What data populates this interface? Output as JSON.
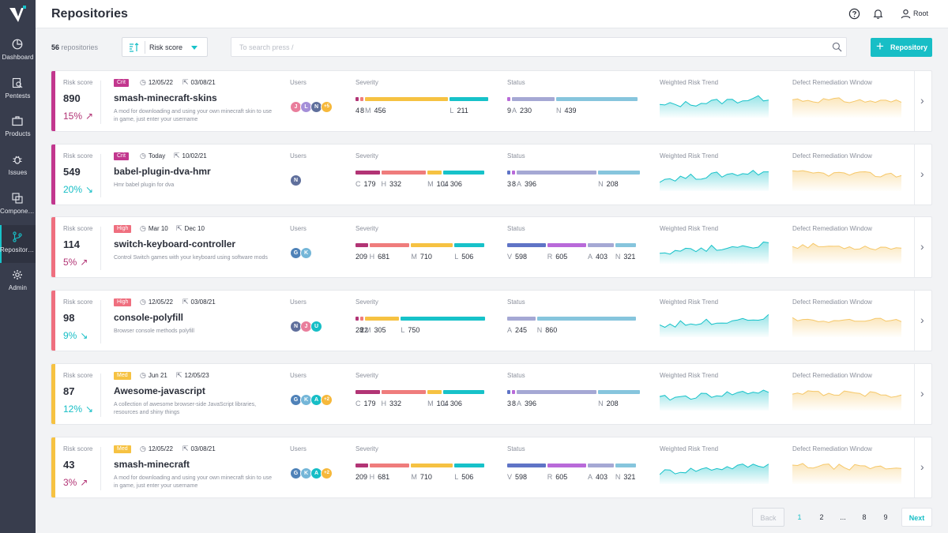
{
  "colors": {
    "accent": "#17bec6",
    "crit": "#c2378e",
    "high": "#ef6f7f",
    "med": "#f6c242",
    "trend_up": "#b23475",
    "trend_down": "#17bec6",
    "sev_c": "#b23475",
    "sev_h": "#ef7c7c",
    "sev_m": "#f6c242",
    "sev_l": "#17c2c9",
    "st_v": "#5f74c6",
    "st_r": "#b96ad9",
    "st_a": "#a5a8d4",
    "st_n": "#86c5dd",
    "risk_trend": "#17c2c9",
    "remediation": "#f6c86a"
  },
  "sidebar": {
    "items": [
      {
        "label": "Dashboard",
        "icon": "dashboard-icon"
      },
      {
        "label": "Pentests",
        "icon": "pentest-icon"
      },
      {
        "label": "Products",
        "icon": "briefcase-icon"
      },
      {
        "label": "Issues",
        "icon": "bug-icon"
      },
      {
        "label": "Components",
        "icon": "components-icon"
      },
      {
        "label": "Repositories",
        "icon": "branch-icon"
      },
      {
        "label": "Admin",
        "icon": "gear-icon"
      }
    ]
  },
  "header": {
    "title": "Repositories",
    "user": "Root"
  },
  "toolbar": {
    "count": "56",
    "count_label": "repositories",
    "sort_value": "Risk score",
    "search_placeholder": "To search press /",
    "add_label": "Repository"
  },
  "labels": {
    "risk_score": "Risk score",
    "users": "Users",
    "severity": "Severity",
    "status": "Status",
    "risk_trend": "Weighted Risk Trend",
    "remediation": "Defect Remediation Window"
  },
  "repos": [
    {
      "score": "890",
      "trend": "15%",
      "trend_dir": "up",
      "severity_level": "Crit",
      "created": "12/05/22",
      "updated": "03/08/21",
      "name": "smash-minecraft-skins",
      "desc": "A mod for downloading and using your own minecraft skin to use in game, just enter your username",
      "users": [
        "J",
        "L",
        "N"
      ],
      "users_more": "+5",
      "severity": [
        {
          "k": "",
          "v": "4",
          "type": "c"
        },
        {
          "k": "",
          "v": "8",
          "type": "h"
        },
        {
          "k": "M",
          "v": "456",
          "type": "m"
        },
        {
          "k": "L",
          "v": "211",
          "type": "l"
        }
      ],
      "status": [
        {
          "k": "",
          "v": "9",
          "type": "r"
        },
        {
          "k": "A",
          "v": "230",
          "type": "a"
        },
        {
          "k": "N",
          "v": "439",
          "type": "n"
        }
      ]
    },
    {
      "score": "549",
      "trend": "20%",
      "trend_dir": "down",
      "severity_level": "Crit",
      "created": "Today",
      "updated": "10/02/21",
      "name": "babel-plugin-dva-hmr",
      "desc": "Hmr babel plugin for dva",
      "users": [
        "N"
      ],
      "users_more": "",
      "severity": [
        {
          "k": "C",
          "v": "179",
          "type": "c"
        },
        {
          "k": "H",
          "v": "332",
          "type": "h"
        },
        {
          "k": "M",
          "v": "104",
          "type": "m"
        },
        {
          "k": "L",
          "v": "306",
          "type": "l"
        }
      ],
      "status": [
        {
          "k": "",
          "v": "3",
          "type": "v"
        },
        {
          "k": "",
          "v": "8",
          "type": "r"
        },
        {
          "k": "A",
          "v": "396",
          "type": "a"
        },
        {
          "k": "N",
          "v": "208",
          "type": "n"
        }
      ]
    },
    {
      "score": "114",
      "trend": "5%",
      "trend_dir": "up",
      "severity_level": "High",
      "created": "Mar 10",
      "updated": "Dec 10",
      "name": "switch-keyboard-controller",
      "desc": "Control Switch games with your keyboard using software mods",
      "users": [
        "G",
        "K"
      ],
      "users_more": "",
      "severity": [
        {
          "k": "",
          "v": "209",
          "type": "c"
        },
        {
          "k": "H",
          "v": "681",
          "type": "h"
        },
        {
          "k": "M",
          "v": "710",
          "type": "m"
        },
        {
          "k": "L",
          "v": "506",
          "type": "l"
        }
      ],
      "status": [
        {
          "k": "V",
          "v": "598",
          "type": "v"
        },
        {
          "k": "R",
          "v": "605",
          "type": "r"
        },
        {
          "k": "A",
          "v": "403",
          "type": "a"
        },
        {
          "k": "N",
          "v": "321",
          "type": "n"
        }
      ]
    },
    {
      "score": "98",
      "trend": "9%",
      "trend_dir": "down",
      "severity_level": "High",
      "created": "12/05/22",
      "updated": "03/08/21",
      "name": "console-polyfill",
      "desc": "Browser console methods polyfill",
      "users": [
        "N",
        "J",
        "U"
      ],
      "users_more": "",
      "severity": [
        {
          "k": "",
          "v": "28",
          "type": "c"
        },
        {
          "k": "",
          "v": "22",
          "type": "h"
        },
        {
          "k": "M",
          "v": "305",
          "type": "m"
        },
        {
          "k": "L",
          "v": "750",
          "type": "l"
        }
      ],
      "status": [
        {
          "k": "A",
          "v": "245",
          "type": "a"
        },
        {
          "k": "N",
          "v": "860",
          "type": "n"
        }
      ]
    },
    {
      "score": "87",
      "trend": "12%",
      "trend_dir": "down",
      "severity_level": "Med",
      "created": "Jun 21",
      "updated": "12/05/23",
      "name": "Awesome-javascript",
      "desc": "A collection of awesome browser-side JavaScript libraries, resources and shiny things",
      "users": [
        "G",
        "K",
        "A"
      ],
      "users_more": "+2",
      "severity": [
        {
          "k": "C",
          "v": "179",
          "type": "c"
        },
        {
          "k": "H",
          "v": "332",
          "type": "h"
        },
        {
          "k": "M",
          "v": "104",
          "type": "m"
        },
        {
          "k": "L",
          "v": "306",
          "type": "l"
        }
      ],
      "status": [
        {
          "k": "",
          "v": "3",
          "type": "v"
        },
        {
          "k": "",
          "v": "8",
          "type": "r"
        },
        {
          "k": "A",
          "v": "396",
          "type": "a"
        },
        {
          "k": "N",
          "v": "208",
          "type": "n"
        }
      ]
    },
    {
      "score": "43",
      "trend": "3%",
      "trend_dir": "up",
      "severity_level": "Med",
      "created": "12/05/22",
      "updated": "03/08/21",
      "name": "smash-minecraft",
      "desc": "A mod for downloading and using your own minecraft skin to use in game, just enter your username",
      "users": [
        "G",
        "K",
        "A"
      ],
      "users_more": "+2",
      "severity": [
        {
          "k": "",
          "v": "209",
          "type": "c"
        },
        {
          "k": "H",
          "v": "681",
          "type": "h"
        },
        {
          "k": "M",
          "v": "710",
          "type": "m"
        },
        {
          "k": "L",
          "v": "506",
          "type": "l"
        }
      ],
      "status": [
        {
          "k": "V",
          "v": "598",
          "type": "v"
        },
        {
          "k": "R",
          "v": "605",
          "type": "r"
        },
        {
          "k": "A",
          "v": "403",
          "type": "a"
        },
        {
          "k": "N",
          "v": "321",
          "type": "n"
        }
      ]
    }
  ],
  "pagination": {
    "back": "Back",
    "pages": [
      "1",
      "2",
      "...",
      "8",
      "9"
    ],
    "current": "1",
    "next": "Next"
  }
}
